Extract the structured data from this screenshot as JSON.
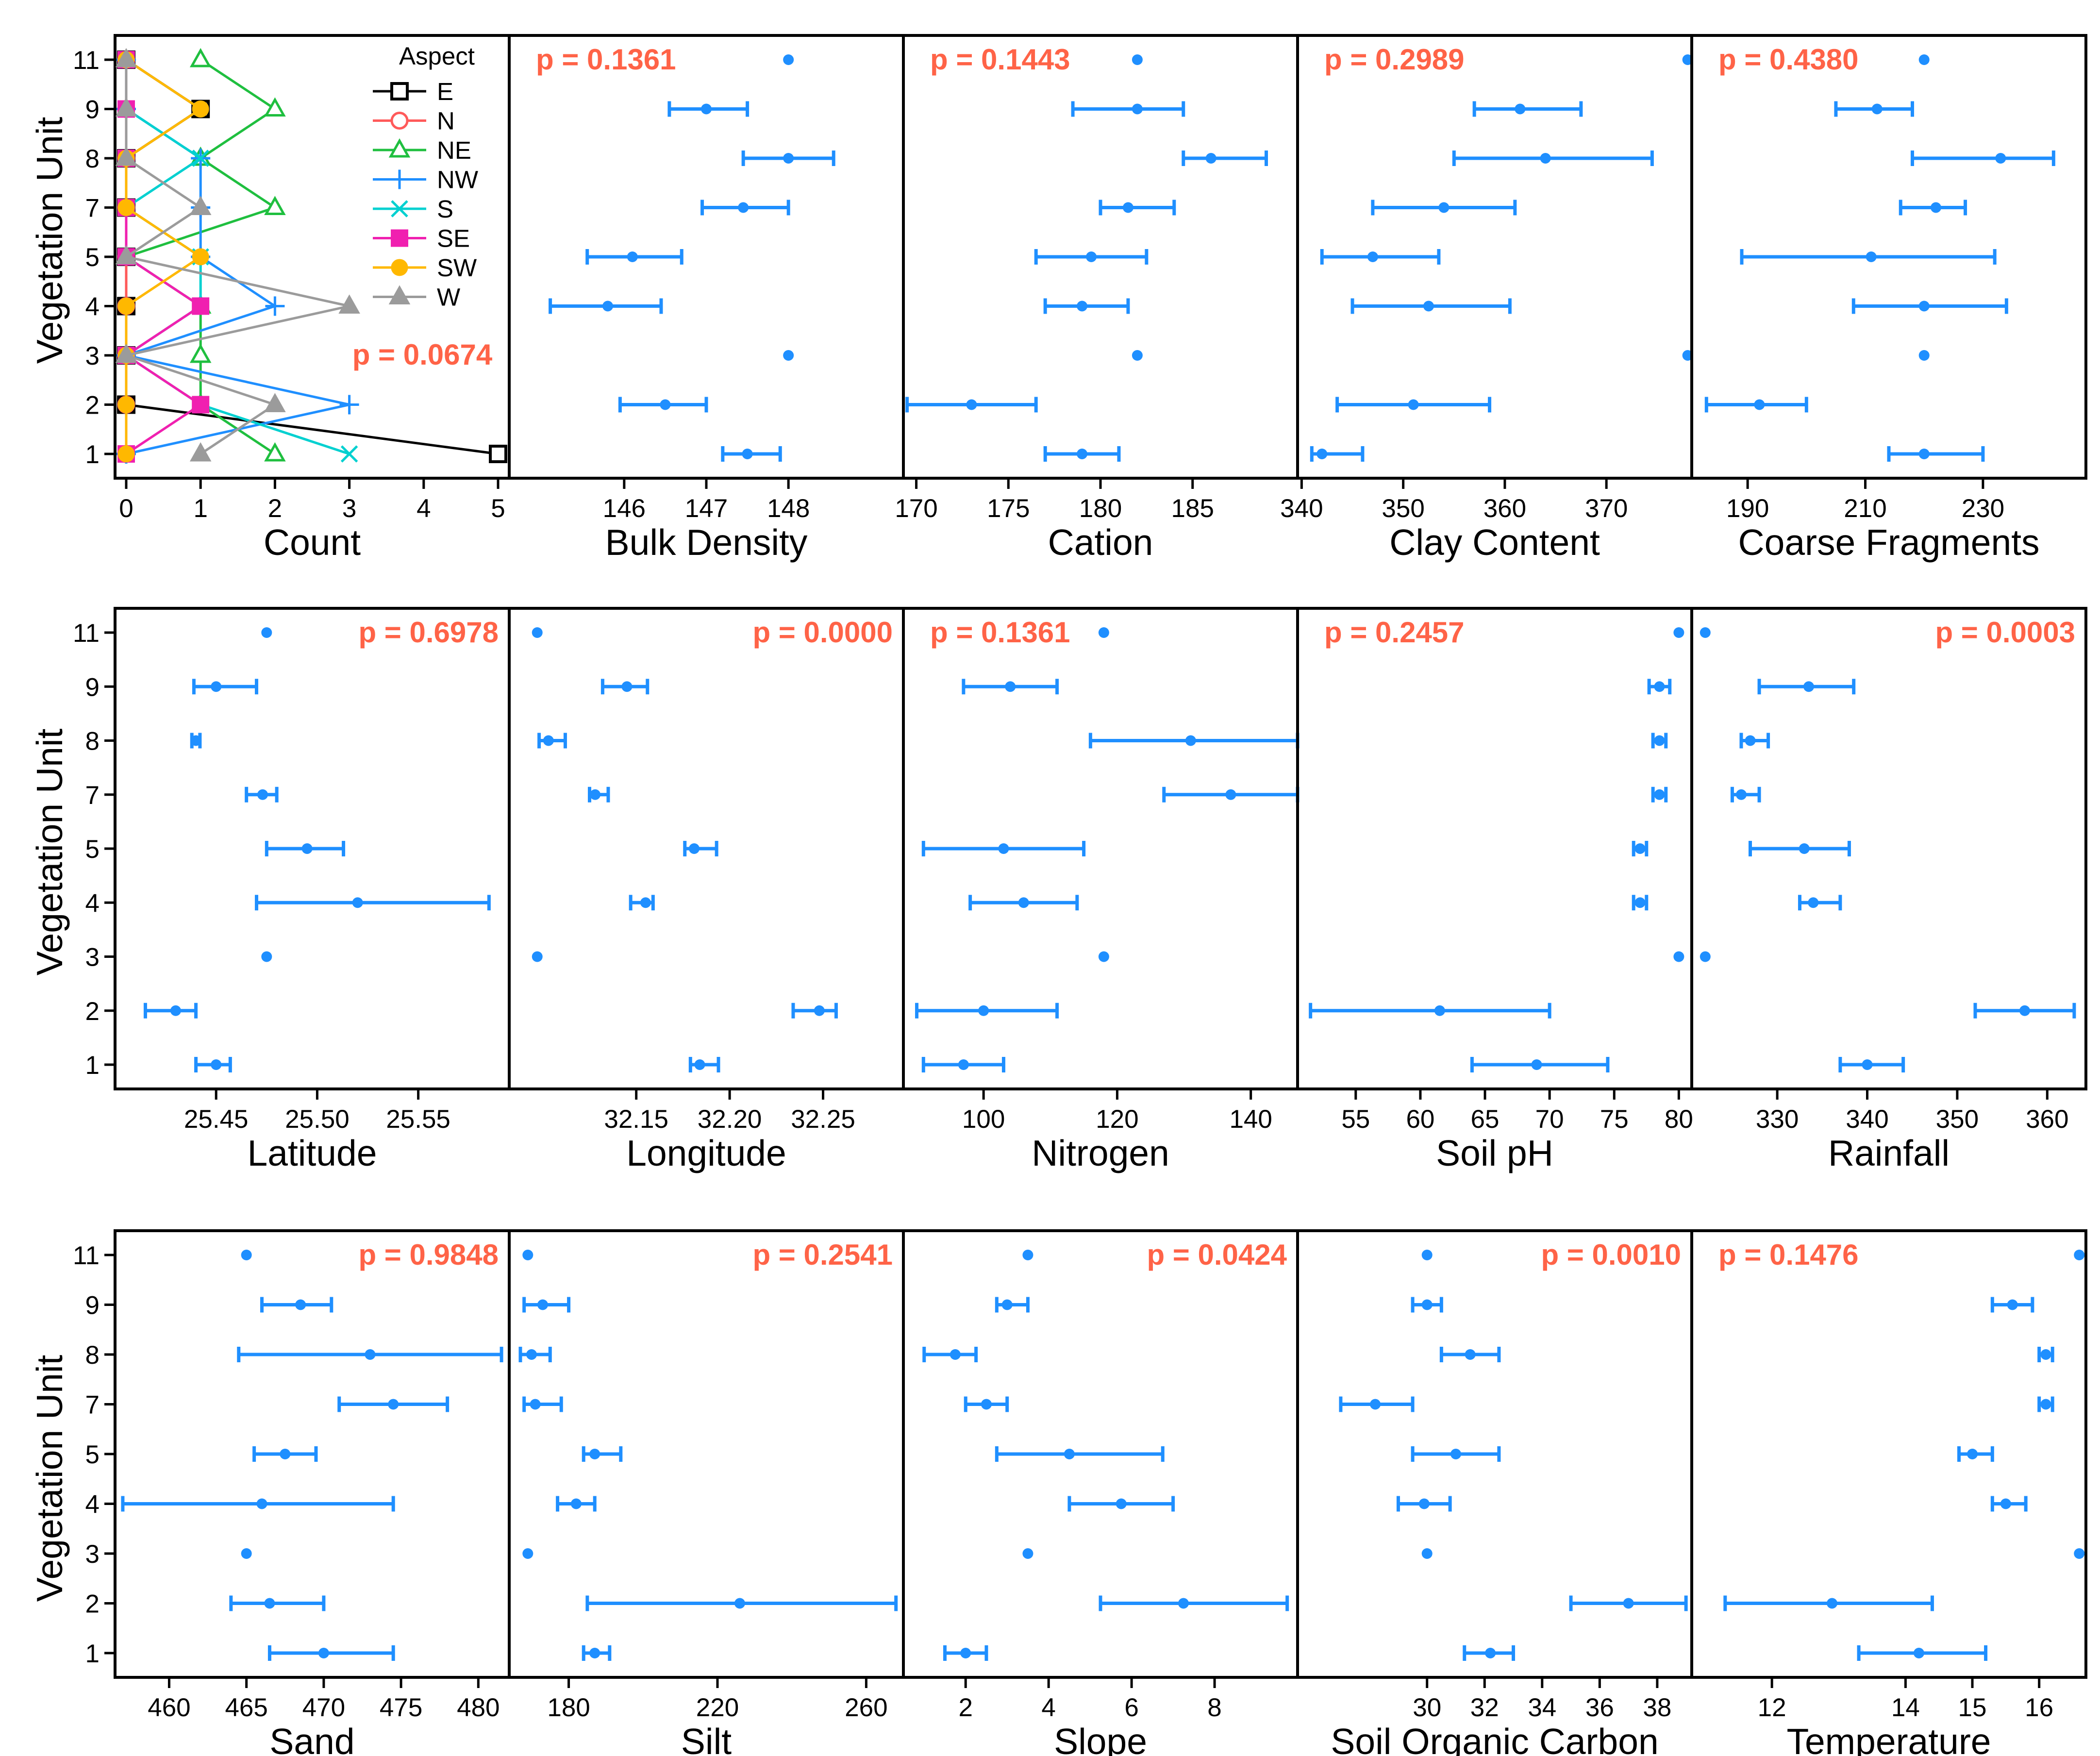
{
  "figure": {
    "y_axis_title": "Vegetation Unit",
    "vegetation_units": [
      "1",
      "2",
      "3",
      "4",
      "5",
      "7",
      "8",
      "9",
      "11"
    ],
    "accent_color": "#1f8fff",
    "pvalue_color": "#ff6347"
  },
  "chart_data": [
    {
      "type": "line",
      "panel": "count",
      "xlabel": "Count",
      "ylabel": "Vegetation Unit",
      "x_ticks": [
        "0",
        "1",
        "2",
        "3",
        "4",
        "5"
      ],
      "xlim": [
        -0.15,
        5.15
      ],
      "p_value": "p = 0.0674",
      "legend_title": "Aspect",
      "series": [
        {
          "name": "E",
          "color": "#000000",
          "marker": "square",
          "values": [
            5,
            0,
            0,
            0,
            0,
            0,
            0,
            1,
            0
          ]
        },
        {
          "name": "N",
          "color": "#ff5a5a",
          "marker": "circle",
          "values": [
            0,
            0,
            0,
            0,
            0,
            0,
            0,
            0,
            0
          ]
        },
        {
          "name": "NE",
          "color": "#1fbf3f",
          "marker": "triangle",
          "values": [
            2,
            1,
            1,
            1,
            0,
            2,
            1,
            2,
            1
          ]
        },
        {
          "name": "NW",
          "color": "#1f8fff",
          "marker": "plus",
          "values": [
            0,
            3,
            0,
            2,
            1,
            1,
            1,
            0,
            0
          ]
        },
        {
          "name": "S",
          "color": "#00d0d0",
          "marker": "cross",
          "values": [
            3,
            1,
            0,
            1,
            1,
            0,
            1,
            0,
            0
          ]
        },
        {
          "name": "SE",
          "color": "#f020b0",
          "marker": "filled-square",
          "values": [
            0,
            1,
            0,
            1,
            0,
            0,
            0,
            0,
            0
          ]
        },
        {
          "name": "SW",
          "color": "#ffb800",
          "marker": "filled-circle",
          "values": [
            0,
            0,
            0,
            0,
            1,
            0,
            0,
            1,
            0
          ]
        },
        {
          "name": "W",
          "color": "#9b9b9b",
          "marker": "filled-triangle",
          "values": [
            1,
            2,
            0,
            3,
            0,
            1,
            0,
            0,
            0
          ]
        }
      ]
    },
    {
      "type": "scatter",
      "panel": "errorbar",
      "xlabel": "Bulk Density",
      "p_value": "p = 0.1361",
      "p_pos": "left",
      "x_ticks": [
        146,
        147,
        148
      ],
      "xlim": [
        144.6,
        149.4
      ],
      "mean": [
        147.5,
        146.5,
        148,
        145.8,
        146.1,
        147.45,
        148,
        147.0,
        148
      ],
      "lower": [
        147.2,
        145.95,
        148,
        145.1,
        145.55,
        146.95,
        147.45,
        146.55,
        148
      ],
      "upper": [
        147.9,
        147.0,
        148,
        146.45,
        146.7,
        148.0,
        148.55,
        147.5,
        148
      ]
    },
    {
      "type": "scatter",
      "panel": "errorbar",
      "xlabel": "Cation",
      "p_value": "p = 0.1443",
      "p_pos": "left",
      "x_ticks": [
        170,
        175,
        180,
        185
      ],
      "xlim": [
        169.3,
        190.7
      ],
      "mean": [
        179.0,
        173.0,
        182.0,
        179.0,
        179.5,
        181.5,
        186.0,
        182.0,
        182.0
      ],
      "lower": [
        177.0,
        169.5,
        182.0,
        177.0,
        176.5,
        180.0,
        184.5,
        178.5,
        182.0
      ],
      "upper": [
        181.0,
        176.5,
        182.0,
        181.5,
        182.5,
        184.0,
        189.0,
        184.5,
        182.0
      ]
    },
    {
      "type": "scatter",
      "panel": "errorbar",
      "xlabel": "Clay Content",
      "p_value": "p = 0.2989",
      "p_pos": "left",
      "x_ticks": [
        340,
        350,
        360,
        370
      ],
      "xlim": [
        339.6,
        378.4
      ],
      "mean": [
        342.0,
        351.0,
        378.0,
        352.5,
        347.0,
        354.0,
        364.0,
        361.5,
        378.0
      ],
      "lower": [
        341.0,
        343.5,
        378.0,
        345.0,
        342.0,
        347.0,
        355.0,
        357.0,
        378.0
      ],
      "upper": [
        346.0,
        358.5,
        378.0,
        360.5,
        353.5,
        361.0,
        374.5,
        367.5,
        378.0
      ]
    },
    {
      "type": "scatter",
      "panel": "errorbar",
      "xlabel": "Coarse Fragments",
      "p_value": "p = 0.4380",
      "p_pos": "left",
      "x_ticks": [
        190,
        210,
        230
      ],
      "xlim": [
        180.5,
        247.5
      ],
      "mean": [
        220.0,
        192.0,
        220.0,
        220.0,
        211.0,
        222.0,
        233.0,
        212.0,
        220.0
      ],
      "lower": [
        214.0,
        183.0,
        220.0,
        208.0,
        189.0,
        216.0,
        218.0,
        205.0,
        220.0
      ],
      "upper": [
        230.0,
        200.0,
        220.0,
        234.0,
        232.0,
        227.0,
        242.0,
        218.0,
        220.0
      ]
    },
    {
      "type": "scatter",
      "panel": "errorbar",
      "xlabel": "Latitude",
      "p_value": "p = 0.6978",
      "p_pos": "right",
      "x_ticks": [
        "25.45",
        "25.50",
        "25.55"
      ],
      "xlim": [
        25.4,
        25.595
      ],
      "mean": [
        25.45,
        25.43,
        25.475,
        25.52,
        25.495,
        25.473,
        25.44,
        25.45,
        25.475
      ],
      "lower": [
        25.44,
        25.415,
        25.475,
        25.47,
        25.475,
        25.465,
        25.438,
        25.439,
        25.475
      ],
      "upper": [
        25.457,
        25.44,
        25.475,
        25.585,
        25.513,
        25.48,
        25.442,
        25.47,
        25.475
      ]
    },
    {
      "type": "scatter",
      "panel": "errorbar",
      "xlabel": "Longitude",
      "p_value": "p = 0.0000",
      "p_pos": "right",
      "x_ticks": [
        "32.15",
        "32.20",
        "32.25"
      ],
      "xlim": [
        32.082,
        32.293
      ],
      "mean": [
        32.184,
        32.248,
        32.097,
        32.155,
        32.181,
        32.128,
        32.103,
        32.145,
        32.097
      ],
      "lower": [
        32.179,
        32.234,
        32.097,
        32.147,
        32.176,
        32.125,
        32.098,
        32.132,
        32.097
      ],
      "upper": [
        32.194,
        32.257,
        32.097,
        32.159,
        32.193,
        32.135,
        32.112,
        32.156,
        32.097
      ]
    },
    {
      "type": "scatter",
      "panel": "errorbar",
      "xlabel": "Nitrogen",
      "p_value": "p = 0.1361",
      "p_pos": "left",
      "x_ticks": [
        100,
        120,
        140
      ],
      "xlim": [
        88.0,
        147.0
      ],
      "mean": [
        97.0,
        100.0,
        118.0,
        106.0,
        103.0,
        137.0,
        131.0,
        104.0,
        118.0
      ],
      "lower": [
        91.0,
        90.0,
        118.0,
        98.0,
        91.0,
        127.0,
        116.0,
        97.0,
        118.0
      ],
      "upper": [
        103.0,
        111.0,
        118.0,
        114.0,
        115.0,
        147.0,
        147.0,
        111.0,
        118.0
      ]
    },
    {
      "type": "scatter",
      "panel": "errorbar",
      "xlabel": "Soil pH",
      "p_value": "p = 0.2457",
      "p_pos": "left",
      "x_ticks": [
        55,
        60,
        65,
        70,
        75,
        80
      ],
      "xlim": [
        50.5,
        81.0
      ],
      "mean": [
        69.0,
        61.5,
        80.0,
        77.0,
        77.0,
        78.5,
        78.5,
        78.5,
        80.0
      ],
      "lower": [
        64.0,
        51.5,
        80.0,
        76.5,
        76.5,
        78.0,
        78.0,
        77.7,
        80.0
      ],
      "upper": [
        74.5,
        70.0,
        80.0,
        77.5,
        77.5,
        79.0,
        79.0,
        79.3,
        80.0
      ]
    },
    {
      "type": "scatter",
      "panel": "errorbar",
      "xlabel": "Rainfall",
      "p_value": "p = 0.0003",
      "p_pos": "right",
      "x_ticks": [
        330,
        340,
        350,
        360
      ],
      "xlim": [
        320.5,
        364.3
      ],
      "mean": [
        340.0,
        357.5,
        322.0,
        334.0,
        333.0,
        326.0,
        327.0,
        333.5,
        322.0
      ],
      "lower": [
        337.0,
        352.0,
        322.0,
        332.5,
        327.0,
        325.0,
        326.0,
        328.0,
        322.0
      ],
      "upper": [
        344.0,
        363.0,
        322.0,
        337.0,
        338.0,
        328.0,
        329.0,
        338.5,
        322.0
      ]
    },
    {
      "type": "scatter",
      "panel": "errorbar",
      "xlabel": "Sand",
      "p_value": "p = 0.9848",
      "p_pos": "right",
      "x_ticks": [
        460,
        465,
        470,
        475,
        480
      ],
      "xlim": [
        456.5,
        482.0
      ],
      "mean": [
        470.0,
        466.5,
        465.0,
        466.0,
        467.5,
        474.5,
        473.0,
        468.5,
        465.0
      ],
      "lower": [
        466.5,
        464.0,
        465.0,
        457.0,
        465.5,
        471.0,
        464.5,
        466.0,
        465.0
      ],
      "upper": [
        474.5,
        470.0,
        465.0,
        474.5,
        469.5,
        478.0,
        481.5,
        470.5,
        465.0
      ]
    },
    {
      "type": "scatter",
      "panel": "errorbar",
      "xlabel": "Silt",
      "p_value": "p = 0.2541",
      "p_pos": "right",
      "x_ticks": [
        180,
        220,
        260
      ],
      "xlim": [
        164.0,
        270.0
      ],
      "mean": [
        187.0,
        226.0,
        169.0,
        182.0,
        187.0,
        171.0,
        170.0,
        173.0,
        169.0
      ],
      "lower": [
        184.0,
        185.0,
        169.0,
        177.0,
        184.0,
        168.0,
        167.0,
        168.0,
        169.0
      ],
      "upper": [
        191.0,
        268.0,
        169.0,
        187.0,
        194.0,
        178.0,
        175.0,
        180.0,
        169.0
      ]
    },
    {
      "type": "scatter",
      "panel": "errorbar",
      "xlabel": "Slope",
      "p_value": "p = 0.0424",
      "p_pos": "right",
      "x_ticks": [
        2,
        4,
        6,
        8
      ],
      "xlim": [
        0.5,
        10.0
      ],
      "mean": [
        2.0,
        7.25,
        3.5,
        5.75,
        4.5,
        2.5,
        1.75,
        3.0,
        3.5
      ],
      "lower": [
        1.5,
        5.25,
        3.5,
        4.5,
        2.75,
        2.0,
        1.0,
        2.75,
        3.5
      ],
      "upper": [
        2.5,
        9.75,
        3.5,
        7.0,
        6.75,
        3.0,
        2.25,
        3.5,
        3.5
      ]
    },
    {
      "type": "scatter",
      "panel": "errorbar",
      "xlabel": "Soil Organic Carbon",
      "p_value": "p = 0.0010",
      "p_pos": "right",
      "x_ticks": [
        30,
        32,
        34,
        36,
        38
      ],
      "xlim": [
        25.5,
        39.2
      ],
      "mean": [
        32.2,
        37.0,
        30.0,
        29.9,
        31.0,
        28.2,
        31.5,
        30.0,
        30.0
      ],
      "lower": [
        31.3,
        35.0,
        30.0,
        29.0,
        29.5,
        27.0,
        30.5,
        29.5,
        30.0
      ],
      "upper": [
        33.0,
        39.0,
        30.0,
        30.8,
        32.5,
        29.5,
        32.5,
        30.5,
        30.0
      ]
    },
    {
      "type": "scatter",
      "panel": "errorbar",
      "xlabel": "Temperature",
      "p_value": "p = 0.1476",
      "p_pos": "left",
      "x_ticks": [
        12,
        14,
        15,
        16
      ],
      "xlim": [
        10.8,
        16.7
      ],
      "mean": [
        14.2,
        12.9,
        16.6,
        15.5,
        15.0,
        16.1,
        16.1,
        15.6,
        16.6
      ],
      "lower": [
        13.3,
        11.3,
        16.6,
        15.3,
        14.8,
        16.0,
        16.0,
        15.3,
        16.6
      ],
      "upper": [
        15.2,
        14.4,
        16.6,
        15.8,
        15.3,
        16.2,
        16.2,
        15.9,
        16.6
      ]
    }
  ]
}
